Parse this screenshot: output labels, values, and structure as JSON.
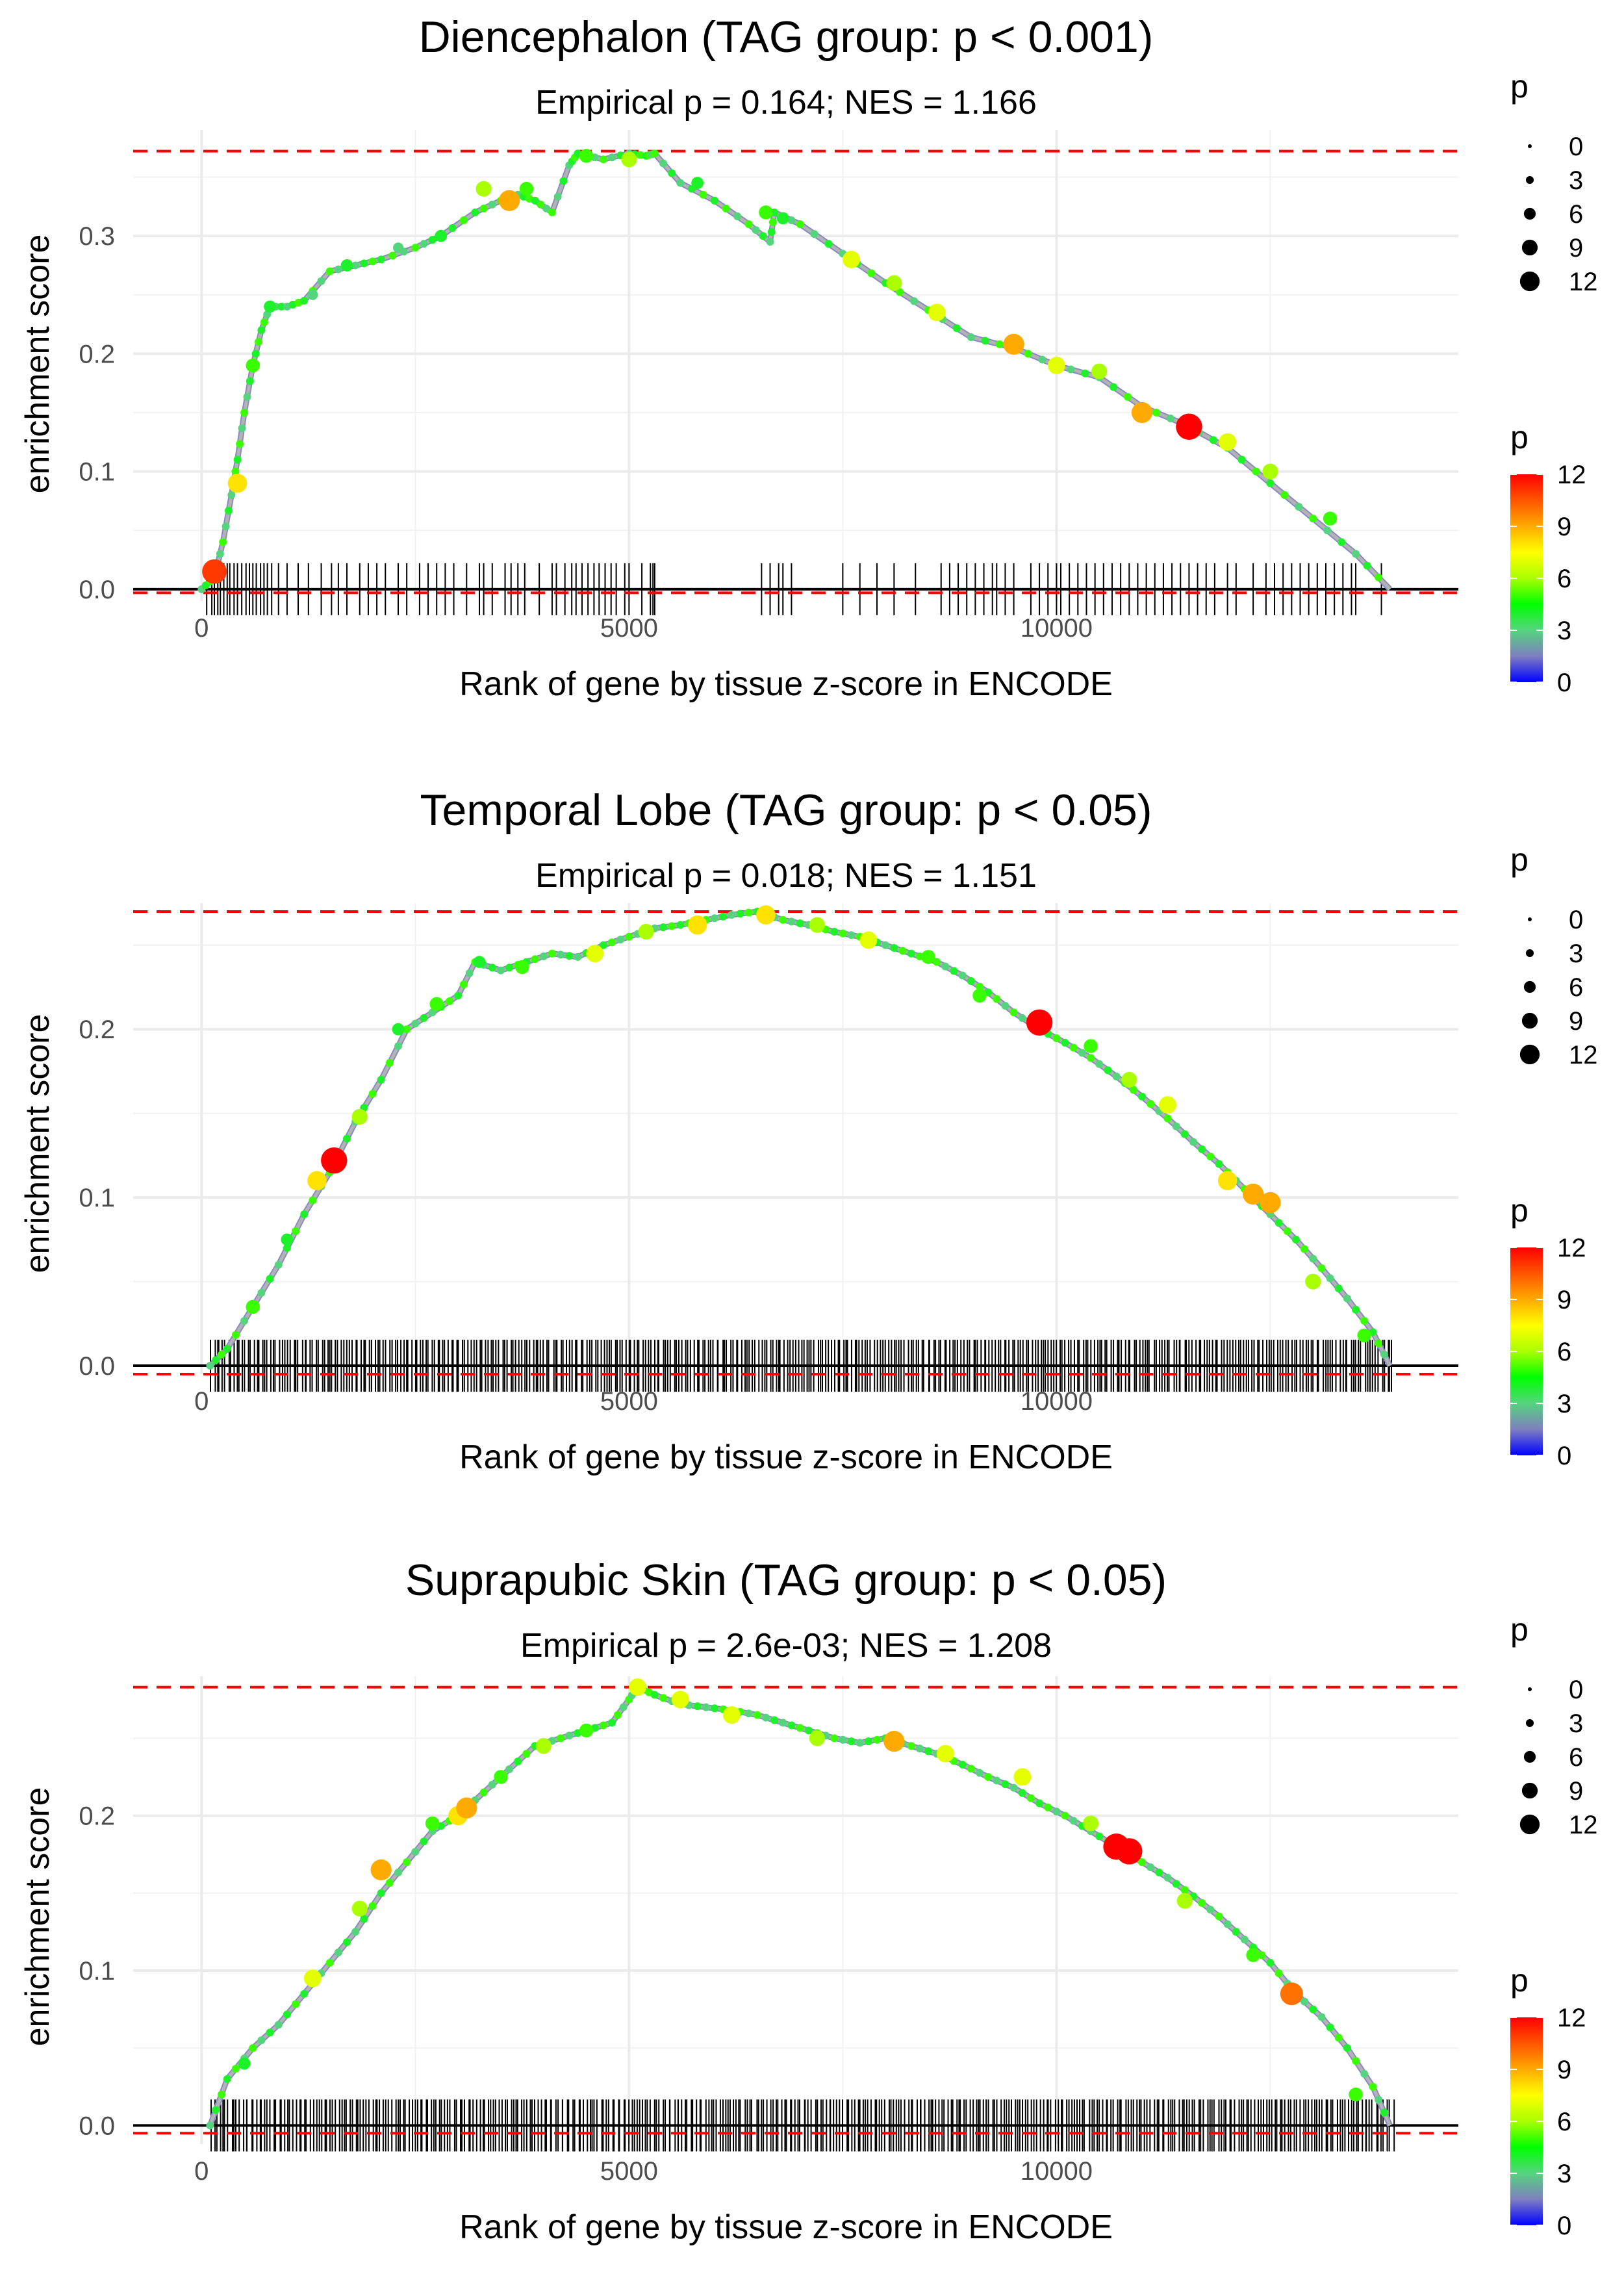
{
  "chart_data": [
    {
      "type": "line",
      "title": "Diencephalon (TAG group: p < 0.001)",
      "subtitle": "Empirical p = 0.164; NES = 1.166",
      "xlabel": "Rank of gene by tissue z-score in ENCODE",
      "ylabel": "enrichment score",
      "xlim": [
        -800,
        14700
      ],
      "ylim": [
        -0.01,
        0.39
      ],
      "xticks": [
        0,
        5000,
        10000
      ],
      "xtick_labels": [
        "0",
        "5000",
        "10000"
      ],
      "yticks": [
        0.0,
        0.1,
        0.2,
        0.3
      ],
      "ytick_labels": [
        "0.0",
        "0.1",
        "0.2",
        "0.3"
      ],
      "max_es": 0.372,
      "min_es": -0.003,
      "series": [
        {
          "name": "running enrichment score",
          "x": [
            0,
            150,
            250,
            350,
            420,
            500,
            600,
            700,
            800,
            1000,
            1200,
            1500,
            1800,
            2100,
            2500,
            2800,
            3200,
            3500,
            3700,
            3900,
            4100,
            4300,
            4400,
            4700,
            5000,
            5200,
            5300,
            5600,
            6000,
            6400,
            6650,
            6700,
            7000,
            7500,
            8000,
            8500,
            9000,
            9500,
            10000,
            10500,
            11000,
            11500,
            12000,
            12500,
            13000,
            13500,
            13900
          ],
          "y": [
            0.0,
            0.01,
            0.04,
            0.08,
            0.11,
            0.15,
            0.19,
            0.22,
            0.24,
            0.24,
            0.245,
            0.27,
            0.275,
            0.28,
            0.29,
            0.3,
            0.32,
            0.33,
            0.335,
            0.33,
            0.32,
            0.36,
            0.37,
            0.365,
            0.37,
            0.368,
            0.37,
            0.345,
            0.33,
            0.31,
            0.295,
            0.32,
            0.31,
            0.285,
            0.26,
            0.237,
            0.214,
            0.205,
            0.19,
            0.18,
            0.155,
            0.14,
            0.12,
            0.09,
            0.06,
            0.03,
            0.0
          ]
        }
      ],
      "points": {
        "x": [
          150,
          420,
          600,
          800,
          1300,
          1700,
          2300,
          2800,
          3300,
          3600,
          3800,
          4500,
          5000,
          5800,
          6600,
          6800,
          7600,
          8100,
          8600,
          9500,
          10000,
          10500,
          11000,
          11550,
          12000,
          12500,
          13200
        ],
        "y": [
          0.015,
          0.09,
          0.19,
          0.24,
          0.25,
          0.275,
          0.29,
          0.3,
          0.34,
          0.33,
          0.34,
          0.368,
          0.365,
          0.345,
          0.32,
          0.315,
          0.28,
          0.26,
          0.235,
          0.208,
          0.19,
          0.185,
          0.15,
          0.138,
          0.125,
          0.1,
          0.06
        ],
        "p": [
          11,
          8,
          5,
          4,
          3,
          4,
          3,
          4,
          6,
          9,
          5,
          5,
          6,
          4,
          5,
          4,
          7,
          6,
          7,
          9,
          7,
          6,
          9,
          12,
          7,
          6,
          5
        ]
      },
      "rug": [
        60,
        120,
        150,
        190,
        220,
        260,
        300,
        330,
        380,
        420,
        470,
        520,
        560,
        600,
        640,
        690,
        730,
        770,
        820,
        900,
        1000,
        1130,
        1250,
        1400,
        1520,
        1600,
        1700,
        1850,
        1950,
        2050,
        2150,
        2300,
        2400,
        2550,
        2650,
        2750,
        2850,
        2950,
        3100,
        3250,
        3300,
        3400,
        3550,
        3620,
        3700,
        3780,
        3950,
        4100,
        4150,
        4250,
        4330,
        4380,
        4450,
        4520,
        4590,
        4650,
        4720,
        4790,
        4850,
        4950,
        5000,
        5150,
        5250,
        5280,
        5300,
        6550,
        6650,
        6750,
        6800,
        6900,
        7500,
        7700,
        7900,
        8100,
        8350,
        8650,
        8750,
        8850,
        8950,
        9050,
        9150,
        9250,
        9300,
        9400,
        9500,
        9700,
        9800,
        9900,
        10000,
        10050,
        10150,
        10250,
        10350,
        10450,
        10550,
        10650,
        10750,
        10850,
        10950,
        11050,
        11150,
        11250,
        11350,
        11450,
        11550,
        11650,
        11750,
        11850,
        12000,
        12100,
        12300,
        12450,
        12550,
        12650,
        12750,
        12850,
        12950,
        13050,
        13150,
        13250,
        13350,
        13450,
        13500,
        13800
      ]
    },
    {
      "type": "line",
      "title": "Temporal Lobe (TAG group: p < 0.05)",
      "subtitle": "Empirical p = 0.018; NES = 1.151",
      "xlabel": "Rank of gene by tissue z-score in ENCODE",
      "ylabel": "enrichment score",
      "xlim": [
        -800,
        14700
      ],
      "ylim": [
        -0.005,
        0.275
      ],
      "xticks": [
        0,
        5000,
        10000
      ],
      "xtick_labels": [
        "0",
        "5000",
        "10000"
      ],
      "yticks": [
        0.0,
        0.1,
        0.2
      ],
      "ytick_labels": [
        "0.0",
        "0.1",
        "0.2"
      ],
      "max_es": 0.27,
      "min_es": -0.005,
      "series": [
        {
          "name": "running enrichment score",
          "x": [
            100,
            300,
            600,
            900,
            1200,
            1500,
            1800,
            2100,
            2400,
            2700,
            3000,
            3200,
            3500,
            3800,
            4100,
            4400,
            4700,
            5000,
            5300,
            5600,
            5900,
            6200,
            6500,
            6800,
            7100,
            7400,
            7700,
            8000,
            8300,
            8600,
            8900,
            9200,
            9500,
            9800,
            10100,
            10400,
            10700,
            11000,
            11300,
            11600,
            11900,
            12200,
            12500,
            12800,
            13100,
            13400,
            13700,
            13900
          ],
          "y": [
            0.0,
            0.01,
            0.035,
            0.06,
            0.09,
            0.115,
            0.145,
            0.17,
            0.2,
            0.21,
            0.22,
            0.24,
            0.235,
            0.24,
            0.245,
            0.243,
            0.25,
            0.255,
            0.26,
            0.262,
            0.265,
            0.268,
            0.27,
            0.265,
            0.262,
            0.258,
            0.255,
            0.25,
            0.245,
            0.24,
            0.232,
            0.222,
            0.21,
            0.2,
            0.192,
            0.183,
            0.172,
            0.16,
            0.147,
            0.133,
            0.12,
            0.105,
            0.09,
            0.075,
            0.058,
            0.04,
            0.02,
            0.0
          ]
        }
      ],
      "points": {
        "x": [
          600,
          1000,
          1350,
          1550,
          1850,
          2300,
          2750,
          3250,
          3750,
          4600,
          5200,
          5800,
          6600,
          7200,
          7800,
          8500,
          9100,
          9800,
          10400,
          10850,
          11300,
          12000,
          12300,
          12500,
          13000,
          13600
        ],
        "y": [
          0.035,
          0.075,
          0.11,
          0.122,
          0.148,
          0.2,
          0.215,
          0.24,
          0.237,
          0.245,
          0.258,
          0.262,
          0.268,
          0.262,
          0.253,
          0.243,
          0.22,
          0.204,
          0.19,
          0.17,
          0.155,
          0.11,
          0.102,
          0.097,
          0.05,
          0.018
        ],
        "p": [
          5,
          4,
          8,
          12,
          6,
          4,
          5,
          4,
          5,
          7,
          6,
          8,
          8,
          6,
          7,
          5,
          5,
          12,
          5,
          6,
          7,
          8,
          9,
          9,
          6,
          5
        ]
      },
      "rug_range": [
        100,
        13950
      ],
      "rug_count": 420
    },
    {
      "type": "line",
      "title": "Suprapubic Skin (TAG group: p < 0.05)",
      "subtitle": "Empirical p = 2.6e-03; NES = 1.208",
      "xlabel": "Rank of gene by tissue z-score in ENCODE",
      "ylabel": "enrichment score",
      "xlim": [
        -800,
        14700
      ],
      "ylim": [
        -0.012,
        0.29
      ],
      "xticks": [
        0,
        5000,
        10000
      ],
      "xtick_labels": [
        "0",
        "5000",
        "10000"
      ],
      "yticks": [
        0.0,
        0.1,
        0.2
      ],
      "ytick_labels": [
        "0.0",
        "0.1",
        "0.2"
      ],
      "max_es": 0.283,
      "min_es": -0.005,
      "series": [
        {
          "name": "running enrichment score",
          "x": [
            100,
            300,
            600,
            900,
            1200,
            1500,
            1800,
            2100,
            2400,
            2700,
            3000,
            3300,
            3600,
            3900,
            4200,
            4500,
            4800,
            5000,
            5100,
            5300,
            5600,
            5900,
            6200,
            6500,
            6800,
            7100,
            7400,
            7700,
            8000,
            8300,
            8600,
            8900,
            9200,
            9500,
            9800,
            10100,
            10400,
            10700,
            11000,
            11300,
            11600,
            11900,
            12200,
            12500,
            12800,
            13100,
            13400,
            13700,
            13900
          ],
          "y": [
            0.0,
            0.03,
            0.05,
            0.065,
            0.085,
            0.105,
            0.125,
            0.15,
            0.17,
            0.19,
            0.2,
            0.215,
            0.23,
            0.245,
            0.25,
            0.255,
            0.26,
            0.275,
            0.283,
            0.278,
            0.272,
            0.27,
            0.268,
            0.265,
            0.26,
            0.255,
            0.25,
            0.247,
            0.25,
            0.245,
            0.24,
            0.233,
            0.225,
            0.218,
            0.208,
            0.2,
            0.19,
            0.18,
            0.17,
            0.16,
            0.148,
            0.135,
            0.12,
            0.105,
            0.085,
            0.07,
            0.05,
            0.025,
            0.0
          ]
        }
      ],
      "points": {
        "x": [
          500,
          1300,
          1850,
          2100,
          2700,
          3000,
          3100,
          3500,
          4000,
          4500,
          5100,
          5600,
          6200,
          7200,
          8100,
          8700,
          9600,
          10400,
          10700,
          10850,
          11500,
          12300,
          12750,
          13500
        ],
        "y": [
          0.04,
          0.095,
          0.14,
          0.165,
          0.195,
          0.2,
          0.205,
          0.225,
          0.245,
          0.255,
          0.283,
          0.275,
          0.265,
          0.25,
          0.248,
          0.24,
          0.225,
          0.195,
          0.18,
          0.177,
          0.145,
          0.11,
          0.085,
          0.02
        ],
        "p": [
          4,
          7,
          6,
          9,
          5,
          8,
          9,
          5,
          6,
          5,
          7,
          7,
          7,
          6,
          9,
          7,
          7,
          6,
          12,
          12,
          6,
          5,
          10,
          5
        ]
      },
      "rug_range": [
        100,
        13950
      ],
      "rug_count": 420
    }
  ],
  "legend": {
    "size_title": "p",
    "size_labels": [
      "0",
      "3",
      "6",
      "9",
      "12"
    ],
    "color_title": "p",
    "color_labels": [
      "12",
      "9",
      "6",
      "3",
      "0"
    ],
    "colors": [
      "#0000ff",
      "#7f7fbf",
      "#55d47e",
      "#00ff00",
      "#aaff00",
      "#ffff00",
      "#ffaa00",
      "#ff5500",
      "#ff0000"
    ]
  },
  "colors": {
    "curve": "#b3b3b3",
    "grid": "#ebebeb",
    "dashed": "#ff0000",
    "baseline": "#000000"
  }
}
